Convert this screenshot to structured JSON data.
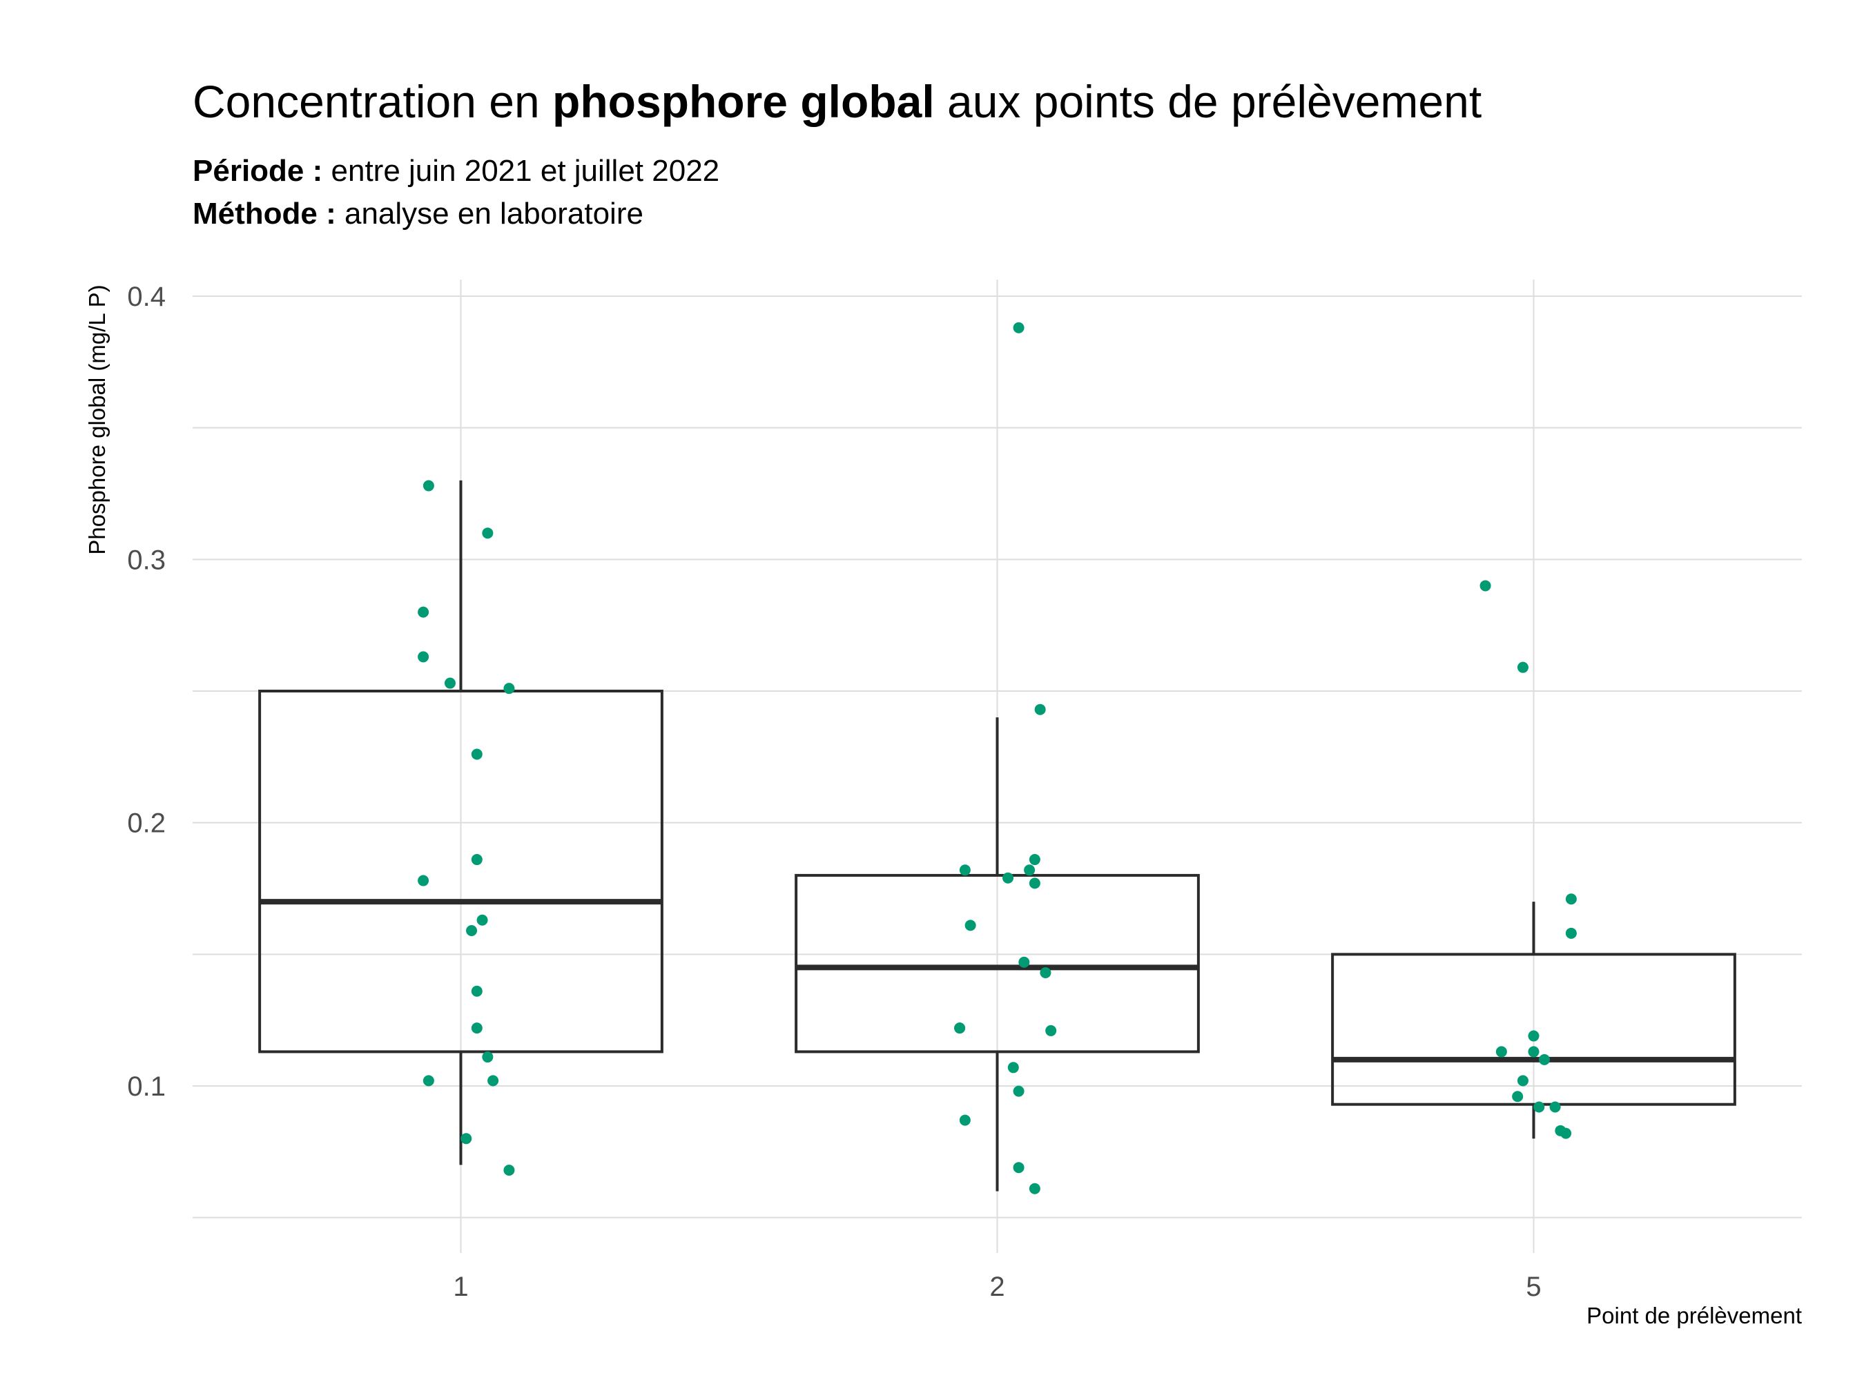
{
  "chart_data": {
    "type": "boxplot",
    "title_prefix": "Concentration en ",
    "title_bold": "phosphore global",
    "title_suffix": " aux points de prélèvement",
    "subtitle": [
      {
        "label": "Période :",
        "text": " entre juin 2021 et juillet 2022"
      },
      {
        "label": "Méthode :",
        "text": " analyse en laboratoire"
      }
    ],
    "xlabel": "Point de prélèvement",
    "ylabel": "Phosphore global (mg/L P)",
    "categories": [
      "1",
      "2",
      "5"
    ],
    "ylim": [
      0.045,
      0.4
    ],
    "y_ticks": [
      0.1,
      0.2,
      0.3,
      0.4
    ],
    "y_tick_labels": [
      "0.1",
      "0.2",
      "0.3",
      "0.4"
    ],
    "grid": true,
    "point_color": "#009B72",
    "box_color": "#2b2b2b",
    "grid_color": "#dddddd",
    "boxes": [
      {
        "category": "1",
        "whisker_low": 0.07,
        "q1": 0.113,
        "median": 0.17,
        "q3": 0.25,
        "whisker_high": 0.33
      },
      {
        "category": "2",
        "whisker_low": 0.06,
        "q1": 0.113,
        "median": 0.145,
        "q3": 0.18,
        "whisker_high": 0.24
      },
      {
        "category": "5",
        "whisker_low": 0.08,
        "q1": 0.093,
        "median": 0.11,
        "q3": 0.15,
        "whisker_high": 0.17
      }
    ],
    "points": [
      {
        "category": "1",
        "jitter": -0.06,
        "y": 0.328
      },
      {
        "category": "1",
        "jitter": 0.05,
        "y": 0.31
      },
      {
        "category": "1",
        "jitter": -0.07,
        "y": 0.28
      },
      {
        "category": "1",
        "jitter": -0.07,
        "y": 0.263
      },
      {
        "category": "1",
        "jitter": -0.02,
        "y": 0.253
      },
      {
        "category": "1",
        "jitter": 0.09,
        "y": 0.251
      },
      {
        "category": "1",
        "jitter": 0.03,
        "y": 0.226
      },
      {
        "category": "1",
        "jitter": 0.03,
        "y": 0.186
      },
      {
        "category": "1",
        "jitter": -0.07,
        "y": 0.178
      },
      {
        "category": "1",
        "jitter": 0.04,
        "y": 0.163
      },
      {
        "category": "1",
        "jitter": 0.02,
        "y": 0.159
      },
      {
        "category": "1",
        "jitter": 0.03,
        "y": 0.136
      },
      {
        "category": "1",
        "jitter": 0.03,
        "y": 0.122
      },
      {
        "category": "1",
        "jitter": 0.05,
        "y": 0.111
      },
      {
        "category": "1",
        "jitter": -0.06,
        "y": 0.102
      },
      {
        "category": "1",
        "jitter": 0.06,
        "y": 0.102
      },
      {
        "category": "1",
        "jitter": 0.01,
        "y": 0.08
      },
      {
        "category": "1",
        "jitter": 0.09,
        "y": 0.068
      },
      {
        "category": "2",
        "jitter": 0.04,
        "y": 0.388
      },
      {
        "category": "2",
        "jitter": 0.08,
        "y": 0.243
      },
      {
        "category": "2",
        "jitter": 0.07,
        "y": 0.186
      },
      {
        "category": "2",
        "jitter": -0.06,
        "y": 0.182
      },
      {
        "category": "2",
        "jitter": 0.06,
        "y": 0.182
      },
      {
        "category": "2",
        "jitter": 0.02,
        "y": 0.179
      },
      {
        "category": "2",
        "jitter": 0.07,
        "y": 0.177
      },
      {
        "category": "2",
        "jitter": -0.05,
        "y": 0.161
      },
      {
        "category": "2",
        "jitter": 0.05,
        "y": 0.147
      },
      {
        "category": "2",
        "jitter": 0.09,
        "y": 0.143
      },
      {
        "category": "2",
        "jitter": -0.07,
        "y": 0.122
      },
      {
        "category": "2",
        "jitter": -0.07,
        "y": 0.122
      },
      {
        "category": "2",
        "jitter": 0.1,
        "y": 0.121
      },
      {
        "category": "2",
        "jitter": 0.03,
        "y": 0.107
      },
      {
        "category": "2",
        "jitter": 0.04,
        "y": 0.098
      },
      {
        "category": "2",
        "jitter": -0.06,
        "y": 0.087
      },
      {
        "category": "2",
        "jitter": 0.04,
        "y": 0.069
      },
      {
        "category": "2",
        "jitter": 0.07,
        "y": 0.061
      },
      {
        "category": "5",
        "jitter": -0.09,
        "y": 0.29
      },
      {
        "category": "5",
        "jitter": -0.02,
        "y": 0.259
      },
      {
        "category": "5",
        "jitter": 0.07,
        "y": 0.171
      },
      {
        "category": "5",
        "jitter": 0.07,
        "y": 0.158
      },
      {
        "category": "5",
        "jitter": 0.0,
        "y": 0.119
      },
      {
        "category": "5",
        "jitter": -0.06,
        "y": 0.113
      },
      {
        "category": "5",
        "jitter": 0.0,
        "y": 0.113
      },
      {
        "category": "5",
        "jitter": 0.02,
        "y": 0.11
      },
      {
        "category": "5",
        "jitter": -0.02,
        "y": 0.102
      },
      {
        "category": "5",
        "jitter": -0.03,
        "y": 0.096
      },
      {
        "category": "5",
        "jitter": 0.01,
        "y": 0.092
      },
      {
        "category": "5",
        "jitter": 0.04,
        "y": 0.092
      },
      {
        "category": "5",
        "jitter": 0.05,
        "y": 0.083
      },
      {
        "category": "5",
        "jitter": 0.06,
        "y": 0.082
      }
    ]
  }
}
